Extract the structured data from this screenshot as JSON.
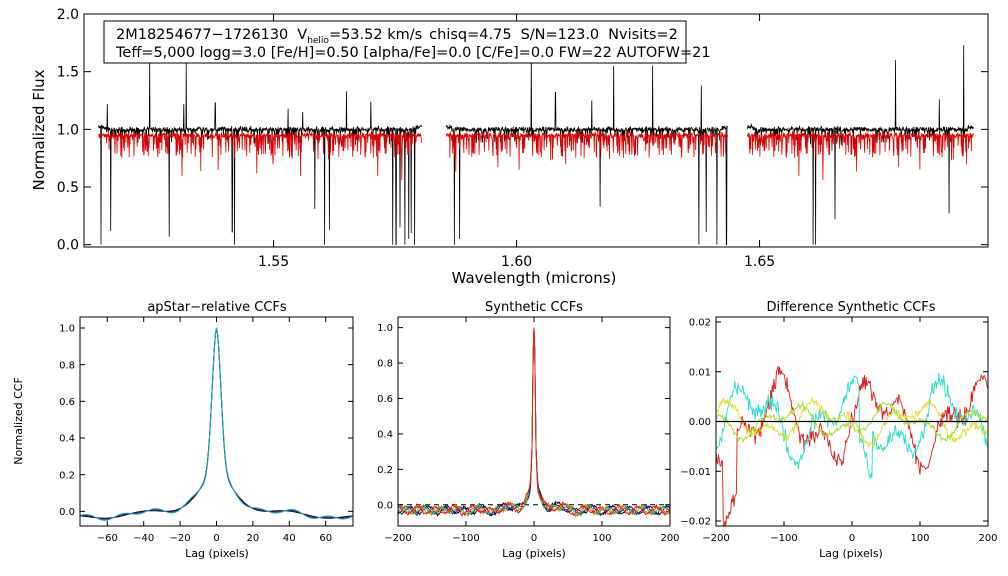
{
  "info_box": {
    "line1": {
      "star_id": "2M18254677−1726130",
      "vhelio_prefix": "V",
      "vhelio_sub": "helio",
      "vhelio_value": "=53.52 km/s",
      "chisq": "chisq=4.75",
      "snr": "S/N=123.0",
      "nvisits": "Nvisits=2"
    },
    "line2": "Teff=5,000 logg=3.0 [Fe/H]=0.50 [alpha/Fe]=0.0 [C/Fe]=0.0 FW=22 AUTOFW=21"
  },
  "colors": {
    "observed": "#000000",
    "model": "#e00000",
    "ccf_black": "#000000",
    "ccf_blue": "#1a1aa8",
    "ccf_teal": "#20b0a8",
    "ccf_green": "#30c030",
    "ccf_orange": "#e07020",
    "ccf_red": "#e01818",
    "ccf_cyan": "#20e0d0",
    "ccf_yellow": "#e0e020",
    "ccf_lime": "#a0e020"
  },
  "chart_data": [
    {
      "id": "spectrum",
      "type": "line",
      "title": "",
      "xlabel": "Wavelength (microns)",
      "ylabel": "Normalized Flux",
      "xlim": [
        1.511,
        1.697
      ],
      "ylim": [
        -0.02,
        2.0
      ],
      "xticks": [
        1.55,
        1.6,
        1.65
      ],
      "xtick_labels": [
        "1.55",
        "1.60",
        "1.65"
      ],
      "yticks": [
        0.0,
        0.5,
        1.0,
        1.5,
        2.0
      ],
      "ytick_labels": [
        "0.0",
        "0.5",
        "1.0",
        "1.5",
        "2.0"
      ],
      "chips": [
        [
          1.514,
          1.5805
        ],
        [
          1.5855,
          1.6435
        ],
        [
          1.6475,
          1.694
        ]
      ],
      "series": [
        {
          "name": "observed",
          "color_key": "observed",
          "baseline": 1.0
        },
        {
          "name": "model",
          "color_key": "model",
          "baseline": 0.95
        }
      ],
      "emission_spikes": [
        [
          1.513,
          1.22
        ],
        [
          1.5158,
          1.22
        ],
        [
          1.5245,
          1.58
        ],
        [
          1.5315,
          1.22
        ],
        [
          1.532,
          1.58
        ],
        [
          1.538,
          1.23
        ],
        [
          1.553,
          1.18
        ],
        [
          1.556,
          1.15
        ],
        [
          1.565,
          1.33
        ],
        [
          1.57,
          1.24
        ],
        [
          1.603,
          1.65
        ],
        [
          1.608,
          1.32
        ],
        [
          1.6155,
          1.25
        ],
        [
          1.62,
          1.55
        ],
        [
          1.628,
          1.55
        ],
        [
          1.638,
          1.38
        ],
        [
          1.646,
          1.24
        ],
        [
          1.678,
          1.6
        ],
        [
          1.687,
          1.26
        ],
        [
          1.692,
          1.73
        ]
      ],
      "deep_absorptions": [
        [
          1.5145,
          0.0
        ],
        [
          1.5165,
          0.12
        ],
        [
          1.5285,
          0.07
        ],
        [
          1.5415,
          0.11
        ],
        [
          1.542,
          0.0
        ],
        [
          1.5585,
          0.31
        ],
        [
          1.5605,
          0.0
        ],
        [
          1.5615,
          0.13
        ],
        [
          1.5745,
          0.0
        ],
        [
          1.5752,
          0.0
        ],
        [
          1.576,
          0.15
        ],
        [
          1.577,
          0.0
        ],
        [
          1.5778,
          0.05
        ],
        [
          1.5783,
          0.1
        ],
        [
          1.579,
          0.0
        ],
        [
          1.5872,
          0.0
        ],
        [
          1.5883,
          0.05
        ],
        [
          1.6172,
          0.33
        ],
        [
          1.6375,
          0.0
        ],
        [
          1.639,
          0.11
        ],
        [
          1.6412,
          0.0
        ],
        [
          1.6432,
          0.0
        ],
        [
          1.661,
          0.0
        ],
        [
          1.6615,
          0.0
        ],
        [
          1.6655,
          0.22
        ],
        [
          1.689,
          0.27
        ]
      ]
    },
    {
      "id": "ccf1",
      "type": "line",
      "title": "apStar−relative CCFs",
      "xlabel": "Lag (pixels)",
      "ylabel": "Normalized CCF",
      "xlim": [
        -75,
        75
      ],
      "ylim": [
        -0.08,
        1.06
      ],
      "xticks": [
        -60,
        -40,
        -20,
        0,
        20,
        40,
        60
      ],
      "xtick_labels": [
        "−60",
        "−40",
        "−20",
        "0",
        "20",
        "40",
        "60"
      ],
      "yticks": [
        0.0,
        0.2,
        0.4,
        0.6,
        0.8,
        1.0
      ],
      "ytick_labels": [
        "0.0",
        "0.2",
        "0.4",
        "0.6",
        "0.8",
        "1.0"
      ],
      "series": [
        {
          "name": "visit-1",
          "color_key": "ccf_black"
        },
        {
          "name": "visit-2",
          "color_key": "ccf_blue"
        },
        {
          "name": "combined",
          "color_key": "ccf_teal"
        }
      ]
    },
    {
      "id": "ccf2",
      "type": "line",
      "title": "Synthetic CCFs",
      "xlabel": "Lag (pixels)",
      "ylabel": "",
      "xlim": [
        -200,
        200
      ],
      "ylim": [
        -0.12,
        1.06
      ],
      "xticks": [
        -200,
        -100,
        0,
        100,
        200
      ],
      "xtick_labels": [
        "−200",
        "−100",
        "0",
        "100",
        "200"
      ],
      "yticks": [
        0.0,
        0.2,
        0.4,
        0.6,
        0.8,
        1.0
      ],
      "ytick_labels": [
        "0.0",
        "0.2",
        "0.4",
        "0.6",
        "0.8",
        "1.0"
      ],
      "zero_line": true,
      "series": [
        {
          "name": "black",
          "color_key": "ccf_black"
        },
        {
          "name": "blue",
          "color_key": "ccf_blue"
        },
        {
          "name": "green",
          "color_key": "ccf_green"
        },
        {
          "name": "orange",
          "color_key": "ccf_orange"
        },
        {
          "name": "red",
          "color_key": "ccf_red"
        }
      ]
    },
    {
      "id": "ccf3",
      "type": "line",
      "title": "Difference Synthetic CCFs",
      "xlabel": "Lag (pixels)",
      "ylabel": "",
      "xlim": [
        -200,
        200
      ],
      "ylim": [
        -0.021,
        0.021
      ],
      "xticks": [
        -200,
        -100,
        0,
        100,
        200
      ],
      "xtick_labels": [
        "−200",
        "−100",
        "0",
        "100",
        "200"
      ],
      "yticks": [
        -0.02,
        -0.01,
        0.0,
        0.01,
        0.02
      ],
      "ytick_labels": [
        "−0.02",
        "−0.01",
        "0.00",
        "0.01",
        "0.02"
      ],
      "zero_line": true,
      "series": [
        {
          "name": "red",
          "color_key": "ccf_red",
          "offset": 0.0
        },
        {
          "name": "cyan",
          "color_key": "ccf_cyan",
          "offset": 0.3
        },
        {
          "name": "yellow",
          "color_key": "ccf_yellow",
          "offset": 0.6
        },
        {
          "name": "lime",
          "color_key": "ccf_lime",
          "offset": 0.9
        }
      ]
    }
  ]
}
